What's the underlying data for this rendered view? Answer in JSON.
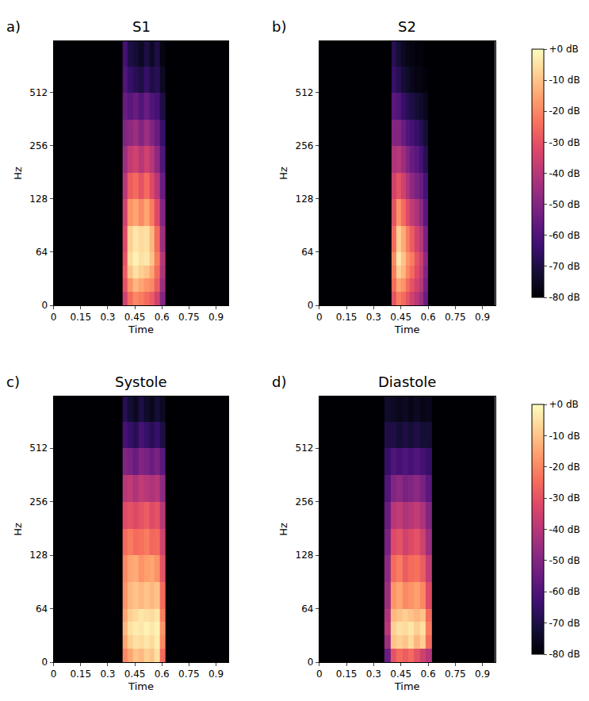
{
  "chart_data": [
    {
      "type": "heatmap",
      "panel": "a)",
      "title": "S1",
      "x_label": "Time",
      "y_label": "Hz",
      "log": "y",
      "xlim": [
        0,
        0.97
      ],
      "xticks": [
        0,
        0.15,
        0.3,
        0.45,
        0.6,
        0.75,
        0.9
      ],
      "ylim": [
        0,
        1000
      ],
      "yticks": [
        0,
        64,
        128,
        256,
        512
      ],
      "z_range": [
        -80,
        0
      ],
      "x_edges": [
        0,
        0.38,
        0.41,
        0.44,
        0.47,
        0.5,
        0.53,
        0.56,
        0.59,
        0.62,
        0.97
      ],
      "y_edges": [
        0,
        16,
        32,
        48,
        64,
        90,
        128,
        180,
        256,
        360,
        512,
        720,
        1000
      ],
      "z": [
        [
          -80,
          -35,
          -25,
          -20,
          -22,
          -25,
          -28,
          -35,
          -50,
          -80
        ],
        [
          -80,
          -30,
          -18,
          -12,
          -15,
          -18,
          -20,
          -28,
          -45,
          -80
        ],
        [
          -80,
          -28,
          -10,
          -5,
          -8,
          -10,
          -15,
          -25,
          -42,
          -80
        ],
        [
          -80,
          -30,
          -6,
          -2,
          -5,
          -4,
          -10,
          -22,
          -40,
          -80
        ],
        [
          -80,
          -32,
          -8,
          -4,
          -6,
          -5,
          -12,
          -25,
          -45,
          -80
        ],
        [
          -80,
          -35,
          -18,
          -15,
          -20,
          -15,
          -22,
          -32,
          -50,
          -80
        ],
        [
          -80,
          -40,
          -28,
          -25,
          -30,
          -25,
          -32,
          -40,
          -55,
          -80
        ],
        [
          -80,
          -45,
          -38,
          -35,
          -40,
          -35,
          -40,
          -48,
          -60,
          -80
        ],
        [
          -80,
          -50,
          -48,
          -45,
          -50,
          -45,
          -50,
          -55,
          -65,
          -80
        ],
        [
          -80,
          -55,
          -58,
          -55,
          -60,
          -55,
          -60,
          -62,
          -70,
          -80
        ],
        [
          -80,
          -60,
          -65,
          -68,
          -70,
          -65,
          -70,
          -68,
          -75,
          -80
        ],
        [
          -80,
          -62,
          -70,
          -72,
          -75,
          -70,
          -75,
          -70,
          -78,
          -80
        ]
      ]
    },
    {
      "type": "heatmap",
      "panel": "b)",
      "title": "S2",
      "x_label": "Time",
      "y_label": "Hz",
      "log": "y",
      "xlim": [
        0,
        0.97
      ],
      "xticks": [
        0,
        0.15,
        0.3,
        0.45,
        0.6,
        0.75,
        0.9
      ],
      "ylim": [
        0,
        1000
      ],
      "yticks": [
        0,
        64,
        128,
        256,
        512
      ],
      "z_range": [
        -80,
        0
      ],
      "x_edges": [
        0,
        0.4,
        0.425,
        0.45,
        0.475,
        0.5,
        0.525,
        0.55,
        0.575,
        0.6,
        0.97
      ],
      "y_edges": [
        0,
        16,
        32,
        48,
        64,
        90,
        128,
        180,
        256,
        360,
        512,
        720,
        1000
      ],
      "z": [
        [
          -80,
          -30,
          -22,
          -25,
          -30,
          -35,
          -40,
          -45,
          -55,
          -80
        ],
        [
          -80,
          -25,
          -15,
          -18,
          -25,
          -30,
          -35,
          -40,
          -52,
          -80
        ],
        [
          -80,
          -22,
          -8,
          -12,
          -20,
          -25,
          -32,
          -38,
          -50,
          -80
        ],
        [
          -80,
          -20,
          -4,
          -10,
          -18,
          -22,
          -30,
          -36,
          -48,
          -80
        ],
        [
          -80,
          -25,
          -8,
          -14,
          -22,
          -28,
          -35,
          -40,
          -52,
          -80
        ],
        [
          -80,
          -30,
          -18,
          -25,
          -32,
          -38,
          -42,
          -48,
          -58,
          -80
        ],
        [
          -80,
          -35,
          -30,
          -35,
          -42,
          -48,
          -52,
          -55,
          -62,
          -80
        ],
        [
          -80,
          -42,
          -40,
          -45,
          -50,
          -55,
          -58,
          -62,
          -68,
          -80
        ],
        [
          -80,
          -50,
          -50,
          -55,
          -60,
          -62,
          -65,
          -68,
          -72,
          -80
        ],
        [
          -80,
          -58,
          -60,
          -65,
          -68,
          -70,
          -72,
          -74,
          -76,
          -80
        ],
        [
          -80,
          -65,
          -68,
          -72,
          -74,
          -76,
          -78,
          -78,
          -79,
          -80
        ],
        [
          -80,
          -68,
          -72,
          -75,
          -77,
          -78,
          -79,
          -79,
          -80,
          -80
        ]
      ],
      "colorbar": {
        "range": [
          -80,
          0
        ],
        "ticks": [
          {
            "value": 0,
            "label": "+0 dB"
          },
          {
            "value": -10,
            "label": "-10 dB"
          },
          {
            "value": -20,
            "label": "-20 dB"
          },
          {
            "value": -30,
            "label": "-30 dB"
          },
          {
            "value": -40,
            "label": "-40 dB"
          },
          {
            "value": -50,
            "label": "-50 dB"
          },
          {
            "value": -60,
            "label": "-60 dB"
          },
          {
            "value": -70,
            "label": "-70 dB"
          },
          {
            "value": -80,
            "label": "-80 dB"
          }
        ]
      }
    },
    {
      "type": "heatmap",
      "panel": "c)",
      "title": "Systole",
      "x_label": "Time",
      "y_label": "Hz",
      "log": "y",
      "xlim": [
        0,
        0.97
      ],
      "xticks": [
        0,
        0.15,
        0.3,
        0.45,
        0.6,
        0.75,
        0.9
      ],
      "ylim": [
        0,
        1000
      ],
      "yticks": [
        0,
        64,
        128,
        256,
        512
      ],
      "z_range": [
        -80,
        0
      ],
      "x_edges": [
        0,
        0.38,
        0.41,
        0.44,
        0.47,
        0.5,
        0.53,
        0.56,
        0.59,
        0.62,
        0.97
      ],
      "y_edges": [
        0,
        16,
        32,
        48,
        64,
        90,
        128,
        180,
        256,
        360,
        512,
        720,
        1000
      ],
      "z": [
        [
          -80,
          -20,
          -15,
          -10,
          -12,
          -8,
          -10,
          -5,
          -25,
          -80
        ],
        [
          -80,
          -15,
          -8,
          -5,
          -6,
          -4,
          -6,
          -3,
          -20,
          -80
        ],
        [
          -80,
          -12,
          -5,
          -3,
          -4,
          -2,
          -4,
          -2,
          -18,
          -80
        ],
        [
          -80,
          -15,
          -8,
          -6,
          -4,
          -5,
          -6,
          -4,
          -22,
          -80
        ],
        [
          -80,
          -18,
          -12,
          -10,
          -12,
          -10,
          -12,
          -10,
          -25,
          -80
        ],
        [
          -80,
          -20,
          -15,
          -14,
          -18,
          -16,
          -15,
          -18,
          -30,
          -80
        ],
        [
          -80,
          -25,
          -22,
          -25,
          -24,
          -22,
          -26,
          -25,
          -35,
          -80
        ],
        [
          -80,
          -32,
          -30,
          -32,
          -30,
          -28,
          -32,
          -30,
          -40,
          -80
        ],
        [
          -80,
          -40,
          -38,
          -42,
          -38,
          -40,
          -42,
          -40,
          -48,
          -80
        ],
        [
          -80,
          -50,
          -52,
          -55,
          -50,
          -52,
          -55,
          -52,
          -58,
          -80
        ],
        [
          -80,
          -62,
          -65,
          -68,
          -62,
          -65,
          -68,
          -65,
          -70,
          -80
        ],
        [
          -80,
          -68,
          -72,
          -75,
          -70,
          -74,
          -76,
          -72,
          -75,
          -80
        ]
      ]
    },
    {
      "type": "heatmap",
      "panel": "d)",
      "title": "Diastole",
      "x_label": "Time",
      "y_label": "Hz",
      "log": "y",
      "xlim": [
        0,
        0.97
      ],
      "xticks": [
        0,
        0.15,
        0.3,
        0.45,
        0.6,
        0.75,
        0.9
      ],
      "ylim": [
        0,
        1000
      ],
      "yticks": [
        0,
        64,
        128,
        256,
        512
      ],
      "z_range": [
        -80,
        0
      ],
      "x_edges": [
        0,
        0.36,
        0.3925,
        0.425,
        0.4575,
        0.49,
        0.5225,
        0.555,
        0.5875,
        0.62,
        0.97
      ],
      "y_edges": [
        0,
        16,
        32,
        48,
        64,
        90,
        128,
        180,
        256,
        360,
        512,
        720,
        1000
      ],
      "z": [
        [
          -80,
          -55,
          -30,
          -25,
          -28,
          -25,
          -30,
          -35,
          -40,
          -80
        ],
        [
          -80,
          -45,
          -10,
          -8,
          -10,
          -6,
          -12,
          -8,
          -25,
          -80
        ],
        [
          -80,
          -40,
          -8,
          -5,
          -6,
          -4,
          -8,
          -5,
          -22,
          -80
        ],
        [
          -80,
          -42,
          -12,
          -10,
          -8,
          -10,
          -12,
          -10,
          -25,
          -80
        ],
        [
          -80,
          -45,
          -18,
          -15,
          -20,
          -18,
          -16,
          -20,
          -32,
          -80
        ],
        [
          -80,
          -48,
          -25,
          -22,
          -28,
          -25,
          -24,
          -28,
          -38,
          -80
        ],
        [
          -80,
          -52,
          -32,
          -30,
          -35,
          -32,
          -30,
          -35,
          -45,
          -80
        ],
        [
          -80,
          -55,
          -40,
          -38,
          -42,
          -40,
          -38,
          -42,
          -50,
          -80
        ],
        [
          -80,
          -60,
          -50,
          -48,
          -52,
          -50,
          -48,
          -52,
          -58,
          -80
        ],
        [
          -80,
          -65,
          -60,
          -62,
          -60,
          -62,
          -60,
          -62,
          -65,
          -80
        ],
        [
          -80,
          -70,
          -70,
          -72,
          -70,
          -72,
          -70,
          -72,
          -72,
          -80
        ],
        [
          -80,
          -74,
          -75,
          -76,
          -75,
          -77,
          -75,
          -77,
          -76,
          -80
        ]
      ],
      "colorbar": {
        "range": [
          -80,
          0
        ],
        "ticks": [
          {
            "value": 0,
            "label": "+0 dB"
          },
          {
            "value": -10,
            "label": "-10 dB"
          },
          {
            "value": -20,
            "label": "-20 dB"
          },
          {
            "value": -30,
            "label": "-30 dB"
          },
          {
            "value": -40,
            "label": "-40 dB"
          },
          {
            "value": -50,
            "label": "-50 dB"
          },
          {
            "value": -60,
            "label": "-60 dB"
          },
          {
            "value": -70,
            "label": "-70 dB"
          },
          {
            "value": -80,
            "label": "-80 dB"
          }
        ]
      }
    }
  ]
}
